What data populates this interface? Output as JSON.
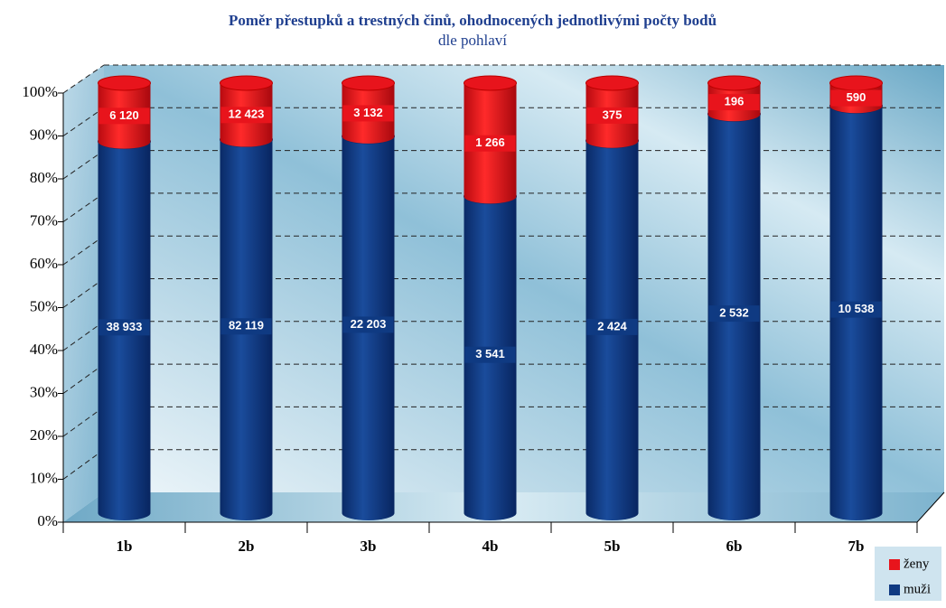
{
  "chart_data": {
    "type": "bar",
    "stacked": "percent",
    "title": "Poměr přestupků a trestných činů, ohodnocených jednotlivými počty bodů",
    "subtitle": "dle pohlaví",
    "categories": [
      "1b",
      "2b",
      "3b",
      "4b",
      "5b",
      "6b",
      "7b"
    ],
    "series": [
      {
        "name": "muži",
        "color": "#0f3a82",
        "values": [
          38933,
          82119,
          22203,
          3541,
          2424,
          2532,
          10538
        ],
        "value_labels": [
          "38 933",
          "82 119",
          "22 203",
          "3 541",
          "2 424",
          "2 532",
          "10 538"
        ]
      },
      {
        "name": "ženy",
        "color": "#e8141c",
        "values": [
          6120,
          12423,
          3132,
          1266,
          375,
          196,
          590
        ],
        "value_labels": [
          "6 120",
          "12 423",
          "3 132",
          "1 266",
          "375",
          "196",
          "590"
        ]
      }
    ],
    "ylim": [
      0,
      100
    ],
    "yticks": [
      {
        "value": 0,
        "label": "0%"
      },
      {
        "value": 10,
        "label": "10%"
      },
      {
        "value": 20,
        "label": "20%"
      },
      {
        "value": 30,
        "label": "30%"
      },
      {
        "value": 40,
        "label": "40%"
      },
      {
        "value": 50,
        "label": "50%"
      },
      {
        "value": 60,
        "label": "60%"
      },
      {
        "value": 70,
        "label": "70%"
      },
      {
        "value": 80,
        "label": "80%"
      },
      {
        "value": 90,
        "label": "90%"
      },
      {
        "value": 100,
        "label": "100%"
      }
    ],
    "grid": true,
    "legend": "bottom-right"
  }
}
